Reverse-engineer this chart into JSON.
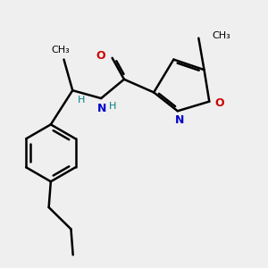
{
  "background_color": "#efefef",
  "atom_colors": {
    "C": "#000000",
    "N": "#0000cc",
    "O": "#cc0000",
    "H": "#008080"
  },
  "bond_color": "#000000",
  "bond_width": 1.8,
  "figsize": [
    3.0,
    3.0
  ],
  "dpi": 100
}
